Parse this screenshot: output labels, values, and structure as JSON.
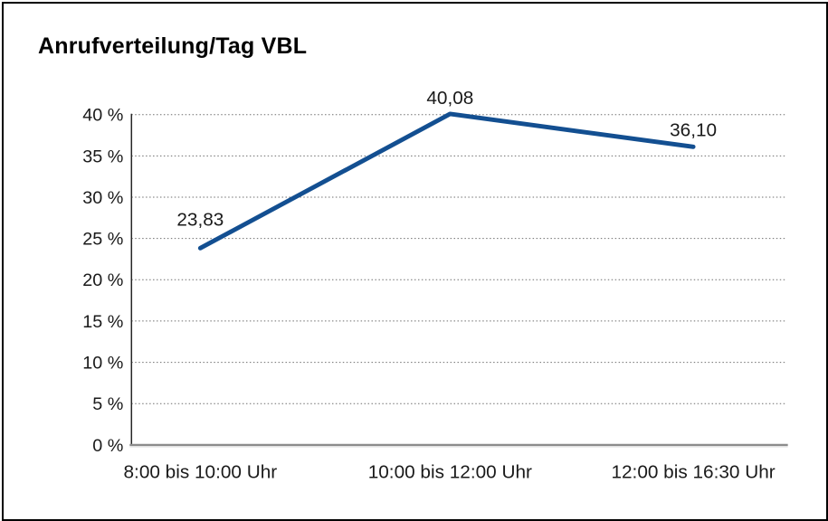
{
  "page": {
    "background_color": "#ffffff",
    "frame_border_color": "#000000"
  },
  "chart_data": {
    "type": "line",
    "title": "Anrufverteilung/Tag VBL",
    "categories": [
      "8:00 bis 10:00 Uhr",
      "10:00 bis 12:00 Uhr",
      "12:00 bis 16:30 Uhr"
    ],
    "series": [
      {
        "name": "Anrufverteilung/Tag VBL",
        "values": [
          23.83,
          40.08,
          36.1
        ],
        "value_labels": [
          "23,83",
          "40,08",
          "36,10"
        ]
      }
    ],
    "xlabel": "",
    "ylabel": "",
    "ylim": [
      0,
      40
    ],
    "y_tick_values": [
      0,
      5,
      10,
      15,
      20,
      25,
      30,
      35,
      40
    ],
    "y_tick_labels": [
      "0 %",
      "5 %",
      "10 %",
      "15 %",
      "20 %",
      "25 %",
      "30 %",
      "35 %",
      "40 %"
    ],
    "grid": "horizontal-dotted",
    "legend": "none",
    "colors": {
      "line": "#134F91",
      "text": "#1a1a1a",
      "gridline": "#6e6e6e",
      "y_axis": "#262626",
      "x_axis_dark": "#8c8c8c",
      "x_axis_light": "#cfcfcf"
    }
  }
}
